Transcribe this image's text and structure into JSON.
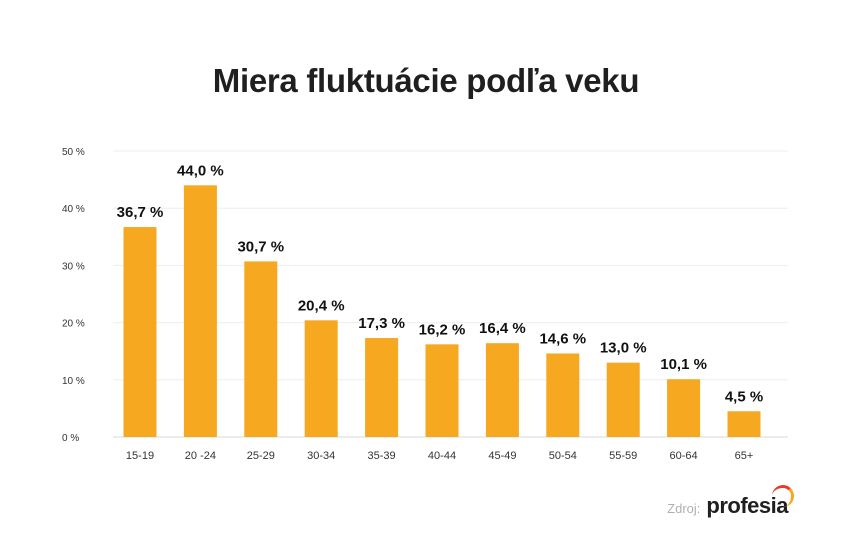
{
  "chart_data": {
    "type": "bar",
    "title": "Miera fluktuácie podľa veku",
    "categories": [
      "15-19",
      "20 -24",
      "25-29",
      "30-34",
      "35-39",
      "40-44",
      "45-49",
      "50-54",
      "55-59",
      "60-64",
      "65+"
    ],
    "values": [
      36.7,
      44.0,
      30.7,
      20.4,
      17.3,
      16.2,
      16.4,
      14.6,
      13.0,
      10.1,
      4.5
    ],
    "value_labels": [
      "36,7 %",
      "44,0 %",
      "30,7 %",
      "20,4 %",
      "17,3 %",
      "16,2 %",
      "16,4 %",
      "14,6 %",
      "13,0 %",
      "10,1 %",
      "4,5 %"
    ],
    "yticks": [
      0,
      10,
      20,
      30,
      40,
      50
    ],
    "ytick_labels": [
      "0 %",
      "10 %",
      "20 %",
      "30 %",
      "40 %",
      "50 %"
    ],
    "ylim": [
      0,
      50
    ],
    "xlabel": "",
    "ylabel": "",
    "grid": true,
    "legend": "none",
    "bar_color": "#f6a821",
    "grid_color": "#eeeeee"
  },
  "source": {
    "label": "Zdroj:",
    "logo_text": "profesia"
  }
}
